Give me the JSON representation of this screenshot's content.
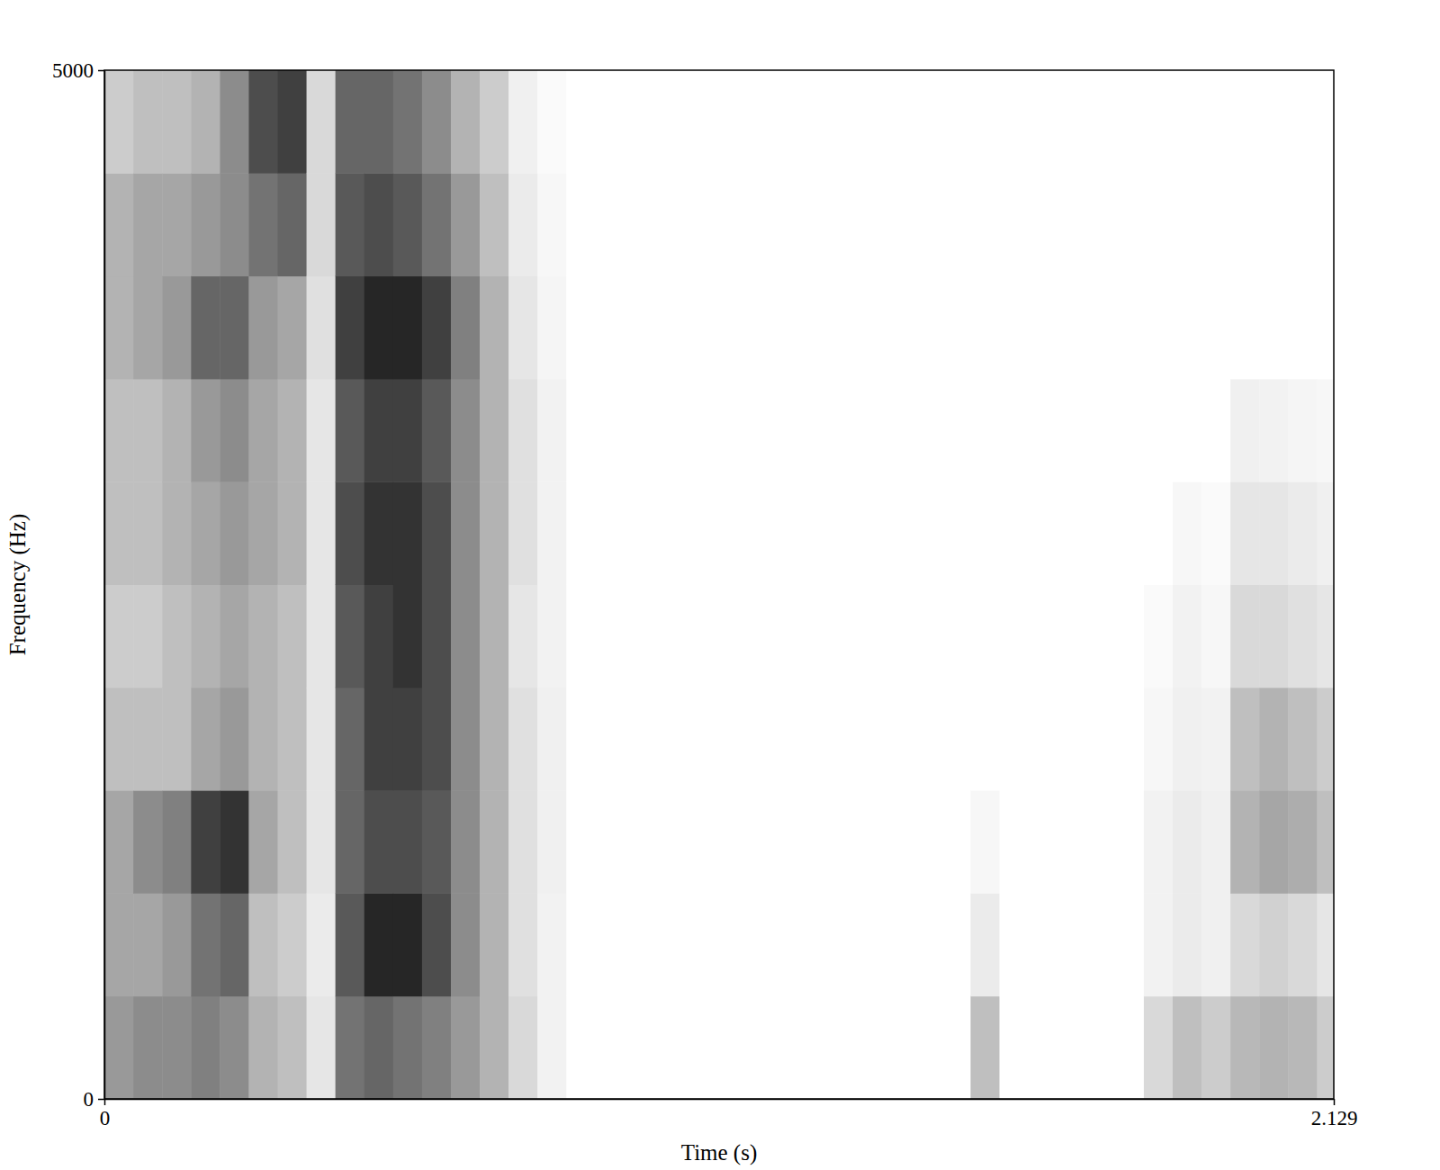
{
  "chart_data": {
    "type": "heatmap",
    "x_label": "Time (s)",
    "y_label": "Frequency (Hz)",
    "xlim": [
      0,
      2.129
    ],
    "ylim": [
      0,
      5000
    ],
    "xticks": [
      0,
      2.129
    ],
    "yticks": [
      0,
      5000
    ],
    "zlim": [
      0,
      100
    ],
    "color": "#000000",
    "time_bins": [
      0,
      0.05,
      0.1,
      0.15,
      0.2,
      0.25,
      0.3,
      0.35,
      0.4,
      0.45,
      0.5,
      0.55,
      0.6,
      0.65,
      0.7,
      0.75,
      0.8,
      0.85,
      0.9,
      0.95,
      1.0,
      1.05,
      1.1,
      1.15,
      1.2,
      1.25,
      1.3,
      1.35,
      1.4,
      1.45,
      1.5,
      1.55,
      1.6,
      1.65,
      1.7,
      1.75,
      1.8,
      1.85,
      1.9,
      1.95,
      2.0,
      2.05,
      2.1,
      2.129
    ],
    "frequency_bins": [
      0,
      500,
      1000,
      1500,
      2000,
      2500,
      3000,
      3500,
      4000,
      4500,
      5000
    ],
    "intensity": [
      [
        40,
        35,
        35,
        25,
        20,
        25,
        25,
        30,
        30,
        20
      ],
      [
        45,
        35,
        45,
        25,
        20,
        25,
        25,
        35,
        35,
        25
      ],
      [
        45,
        40,
        50,
        25,
        25,
        30,
        30,
        40,
        35,
        25
      ],
      [
        50,
        55,
        75,
        35,
        30,
        35,
        40,
        60,
        40,
        30
      ],
      [
        45,
        60,
        80,
        40,
        35,
        40,
        45,
        60,
        45,
        45
      ],
      [
        30,
        25,
        35,
        30,
        30,
        35,
        35,
        40,
        55,
        70
      ],
      [
        25,
        20,
        25,
        25,
        25,
        30,
        30,
        35,
        60,
        75
      ],
      [
        10,
        8,
        10,
        10,
        10,
        10,
        10,
        12,
        15,
        15
      ],
      [
        55,
        65,
        60,
        60,
        65,
        70,
        65,
        75,
        65,
        60
      ],
      [
        60,
        85,
        70,
        75,
        75,
        80,
        75,
        85,
        70,
        60
      ],
      [
        55,
        85,
        70,
        75,
        80,
        80,
        75,
        85,
        65,
        55
      ],
      [
        50,
        70,
        65,
        70,
        70,
        70,
        65,
        75,
        55,
        45
      ],
      [
        40,
        45,
        45,
        45,
        45,
        45,
        45,
        50,
        40,
        30
      ],
      [
        30,
        30,
        30,
        30,
        30,
        30,
        30,
        30,
        25,
        20
      ],
      [
        15,
        12,
        12,
        12,
        10,
        12,
        12,
        10,
        8,
        6
      ],
      [
        5,
        5,
        6,
        6,
        5,
        5,
        5,
        4,
        3,
        2
      ],
      [
        0,
        0,
        0,
        0,
        0,
        0,
        0,
        0,
        0,
        0
      ],
      [
        0,
        0,
        0,
        0,
        0,
        0,
        0,
        0,
        0,
        0
      ],
      [
        0,
        0,
        0,
        0,
        0,
        0,
        0,
        0,
        0,
        0
      ],
      [
        0,
        0,
        0,
        0,
        0,
        0,
        0,
        0,
        0,
        0
      ],
      [
        0,
        0,
        0,
        0,
        0,
        0,
        0,
        0,
        0,
        0
      ],
      [
        0,
        0,
        0,
        0,
        0,
        0,
        0,
        0,
        0,
        0
      ],
      [
        0,
        0,
        0,
        0,
        0,
        0,
        0,
        0,
        0,
        0
      ],
      [
        0,
        0,
        0,
        0,
        0,
        0,
        0,
        0,
        0,
        0
      ],
      [
        0,
        0,
        0,
        0,
        0,
        0,
        0,
        0,
        0,
        0
      ],
      [
        0,
        0,
        0,
        0,
        0,
        0,
        0,
        0,
        0,
        0
      ],
      [
        0,
        0,
        0,
        0,
        0,
        0,
        0,
        0,
        0,
        0
      ],
      [
        0,
        0,
        0,
        0,
        0,
        0,
        0,
        0,
        0,
        0
      ],
      [
        0,
        0,
        0,
        0,
        0,
        0,
        0,
        0,
        0,
        0
      ],
      [
        0,
        0,
        0,
        0,
        0,
        0,
        0,
        0,
        0,
        0
      ],
      [
        25,
        8,
        3,
        0,
        0,
        0,
        0,
        0,
        0,
        0
      ],
      [
        0,
        0,
        0,
        0,
        0,
        0,
        0,
        0,
        0,
        0
      ],
      [
        0,
        0,
        0,
        0,
        0,
        0,
        0,
        0,
        0,
        0
      ],
      [
        0,
        0,
        0,
        0,
        0,
        0,
        0,
        0,
        0,
        0
      ],
      [
        0,
        0,
        0,
        0,
        0,
        0,
        0,
        0,
        0,
        0
      ],
      [
        0,
        0,
        0,
        0,
        0,
        0,
        0,
        0,
        0,
        0
      ],
      [
        15,
        5,
        5,
        3,
        2,
        0,
        0,
        0,
        0,
        0
      ],
      [
        25,
        8,
        8,
        6,
        5,
        3,
        0,
        0,
        0,
        0
      ],
      [
        20,
        6,
        6,
        5,
        3,
        2,
        0,
        0,
        0,
        0
      ],
      [
        28,
        15,
        30,
        25,
        15,
        10,
        6,
        0,
        0,
        0
      ],
      [
        30,
        18,
        35,
        30,
        15,
        10,
        5,
        0,
        0,
        0
      ],
      [
        28,
        15,
        32,
        25,
        12,
        8,
        4,
        0,
        0,
        0
      ],
      [
        20,
        10,
        25,
        20,
        10,
        6,
        3,
        0,
        0,
        0
      ]
    ]
  }
}
